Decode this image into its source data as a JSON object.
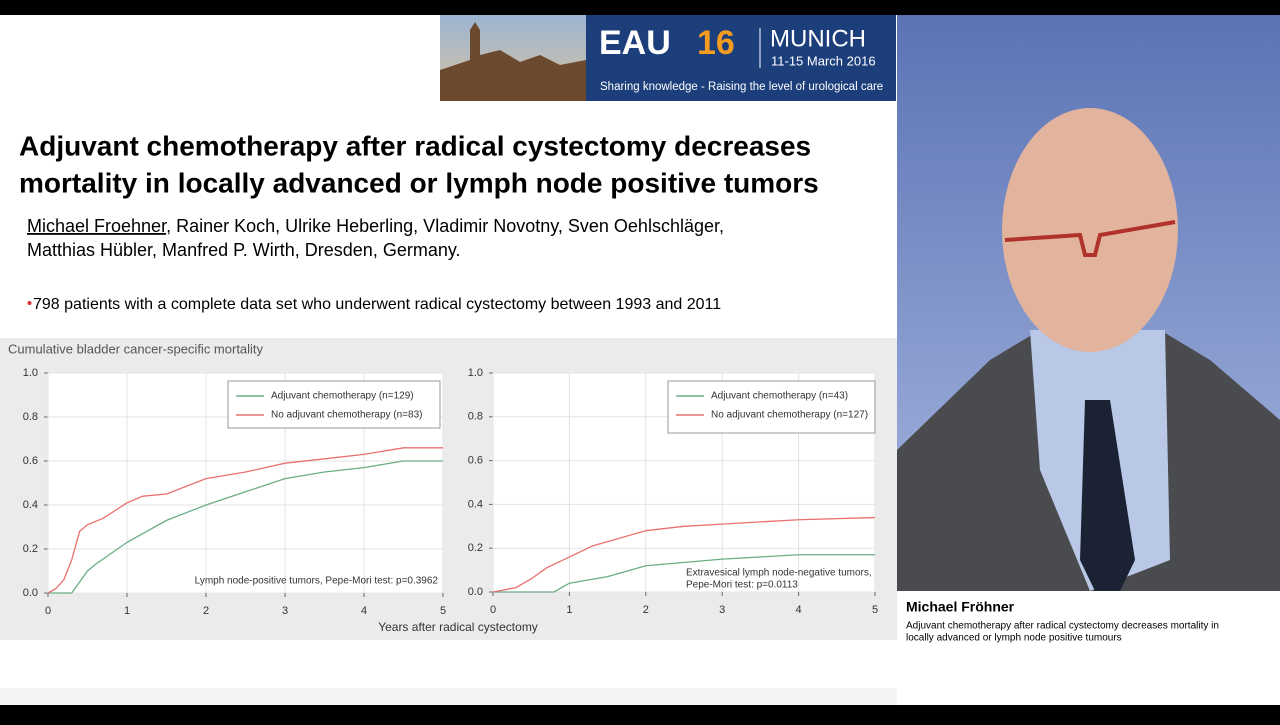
{
  "banner": {
    "event_eau": "EAU",
    "event_num": "16",
    "city": "MUNICH",
    "dates": "11-15 March 2016",
    "tagline": "Sharing knowledge - Raising the level of urological care"
  },
  "slide": {
    "title": [
      "Adjuvant chemotherapy after radical cystectomy decreases",
      "mortality in locally advanced or lymph node positive tumors"
    ],
    "authors": {
      "presenter": "Michael Froehner",
      "line1_rest": ", Rainer Koch, Ulrike Heberling, Vladimir Novotny, Sven Oehlschläger,",
      "line2": "Matthias Hübler, Manfred P. Wirth, Dresden, Germany."
    },
    "bullet": "798 patients with a complete data set who underwent radical cystectomy between 1993 and 2011"
  },
  "figure": {
    "ylabel": "Cumulative bladder cancer-specific mortality",
    "xlabel": "Years after radical cystectomy"
  },
  "chart_data": [
    {
      "type": "line",
      "xlim": [
        0,
        5
      ],
      "ylim": [
        0,
        1
      ],
      "xticks": [
        0,
        1,
        2,
        3,
        4,
        5
      ],
      "yticks": [
        {
          "value": 0,
          "label": "0.0"
        },
        {
          "value": 0.2,
          "label": "0.2"
        },
        {
          "value": 0.4,
          "label": "0.4"
        },
        {
          "value": 0.6,
          "label": "0.6"
        },
        {
          "value": 0.8,
          "label": "0.8"
        },
        {
          "value": 1,
          "label": "1.0"
        }
      ],
      "grid": true,
      "annotation": "Lymph node-positive tumors, Pepe-Mori test: p=0.3962",
      "series": [
        {
          "name": "Adjuvant chemotherapy (n=129)",
          "color": "#6aae84",
          "x": [
            0,
            0.3,
            0.4,
            0.5,
            0.6,
            0.8,
            1.0,
            1.2,
            1.5,
            2.0,
            2.5,
            3.0,
            3.5,
            4.0,
            4.5,
            5.0
          ],
          "values": [
            0,
            0,
            0.05,
            0.1,
            0.13,
            0.18,
            0.23,
            0.27,
            0.33,
            0.4,
            0.46,
            0.52,
            0.55,
            0.57,
            0.6,
            0.6
          ]
        },
        {
          "name": "No adjuvant chemotherapy (n=83)",
          "color": "#e8706f",
          "x": [
            0,
            0.1,
            0.2,
            0.3,
            0.4,
            0.5,
            0.7,
            1.0,
            1.2,
            1.5,
            2.0,
            2.5,
            3.0,
            3.5,
            4.0,
            4.5,
            5.0
          ],
          "values": [
            0,
            0.02,
            0.06,
            0.15,
            0.28,
            0.31,
            0.34,
            0.41,
            0.44,
            0.45,
            0.52,
            0.55,
            0.59,
            0.61,
            0.63,
            0.66,
            0.66
          ]
        }
      ]
    },
    {
      "type": "line",
      "xlim": [
        0,
        5
      ],
      "ylim": [
        0,
        1
      ],
      "xticks": [
        0,
        1,
        2,
        3,
        4,
        5
      ],
      "yticks": [
        {
          "value": 0,
          "label": "0.0"
        },
        {
          "value": 0.2,
          "label": "0.2"
        },
        {
          "value": 0.4,
          "label": "0.4"
        },
        {
          "value": 0.6,
          "label": "0.6"
        },
        {
          "value": 0.8,
          "label": "0.8"
        },
        {
          "value": 1,
          "label": "1.0"
        }
      ],
      "grid": true,
      "annotation": [
        "Extravesical lymph node-negative tumors,",
        "Pepe-Mori test: p=0.0113"
      ],
      "series": [
        {
          "name": "Adjuvant chemotherapy (n=43)",
          "color": "#6aae84",
          "x": [
            0,
            0.8,
            1.0,
            1.5,
            2.0,
            3.0,
            4.0,
            5.0
          ],
          "values": [
            0,
            0,
            0.04,
            0.07,
            0.12,
            0.15,
            0.17,
            0.17
          ]
        },
        {
          "name": "No adjuvant chemotherapy (n=127)",
          "color": "#e8706f",
          "x": [
            0,
            0.3,
            0.5,
            0.7,
            1.0,
            1.3,
            1.5,
            2.0,
            2.5,
            3.0,
            4.0,
            5.0
          ],
          "values": [
            0,
            0.02,
            0.06,
            0.11,
            0.16,
            0.21,
            0.23,
            0.28,
            0.3,
            0.31,
            0.33,
            0.34
          ]
        }
      ]
    }
  ],
  "speaker": {
    "name": "Michael Fröhner",
    "caption": [
      "Adjuvant chemotherapy after radical cystectomy decreases mortality in",
      "locally advanced or lymph node positive tumours"
    ]
  }
}
